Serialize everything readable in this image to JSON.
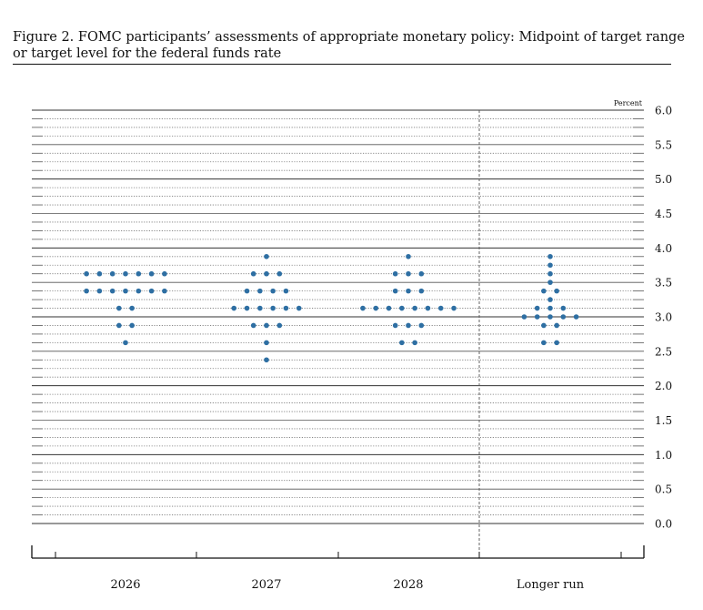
{
  "figure": {
    "title_line1": "Figure 2. FOMC participants’ assessments of appropriate monetary policy: Midpoint of target range",
    "title_line2": "or target level for the federal funds rate"
  },
  "chart_data": {
    "type": "scatter",
    "unit_label": "Percent",
    "categories": [
      "2026",
      "2027",
      "2028",
      "Longer run"
    ],
    "ylim": [
      0,
      6
    ],
    "y_ticks": [
      "0.0",
      "0.5",
      "1.0",
      "1.5",
      "2.0",
      "2.5",
      "3.0",
      "3.5",
      "4.0",
      "4.5",
      "5.0",
      "5.5",
      "6.0"
    ],
    "grid": true,
    "dot_color": "#2e6fa3",
    "distribution": [
      {
        "category": "2026",
        "points": [
          {
            "rate": 3.625,
            "count": 7
          },
          {
            "rate": 3.375,
            "count": 7
          },
          {
            "rate": 3.125,
            "count": 2
          },
          {
            "rate": 2.875,
            "count": 2
          },
          {
            "rate": 2.625,
            "count": 1
          }
        ]
      },
      {
        "category": "2027",
        "points": [
          {
            "rate": 3.875,
            "count": 1
          },
          {
            "rate": 3.625,
            "count": 3
          },
          {
            "rate": 3.375,
            "count": 4
          },
          {
            "rate": 3.125,
            "count": 6
          },
          {
            "rate": 2.875,
            "count": 3
          },
          {
            "rate": 2.625,
            "count": 1
          },
          {
            "rate": 2.375,
            "count": 1
          }
        ]
      },
      {
        "category": "2028",
        "points": [
          {
            "rate": 3.875,
            "count": 1
          },
          {
            "rate": 3.625,
            "count": 3
          },
          {
            "rate": 3.375,
            "count": 3
          },
          {
            "rate": 3.125,
            "count": 8
          },
          {
            "rate": 2.875,
            "count": 3
          },
          {
            "rate": 2.625,
            "count": 2
          }
        ]
      },
      {
        "category": "Longer run",
        "points": [
          {
            "rate": 3.875,
            "count": 1
          },
          {
            "rate": 3.75,
            "count": 1
          },
          {
            "rate": 3.625,
            "count": 1
          },
          {
            "rate": 3.5,
            "count": 1
          },
          {
            "rate": 3.375,
            "count": 2
          },
          {
            "rate": 3.25,
            "count": 1
          },
          {
            "rate": 3.125,
            "count": 3
          },
          {
            "rate": 3.0,
            "count": 5
          },
          {
            "rate": 2.875,
            "count": 2
          },
          {
            "rate": 2.625,
            "count": 2
          }
        ]
      }
    ]
  }
}
